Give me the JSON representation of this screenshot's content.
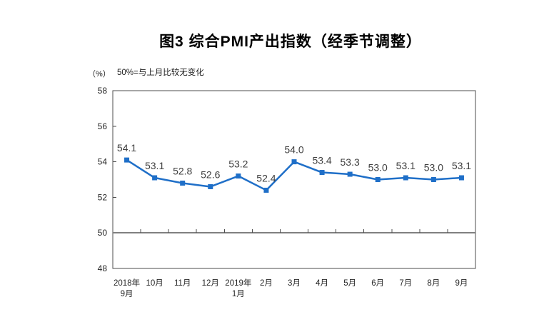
{
  "chart_data": {
    "type": "line",
    "title": "图3 综合PMI产出指数（经季节调整）",
    "unit_label": "（%）",
    "note": "50%=与上月比较无变化",
    "categories": [
      "2018年\n9月",
      "10月",
      "11月",
      "12月",
      "2019年\n1月",
      "2月",
      "3月",
      "4月",
      "5月",
      "6月",
      "7月",
      "8月",
      "9月"
    ],
    "series": [
      {
        "name": "综合PMI产出指数",
        "values": [
          54.1,
          53.1,
          52.8,
          52.6,
          53.2,
          52.4,
          54.0,
          53.4,
          53.3,
          53.0,
          53.1,
          53.0,
          53.1
        ]
      }
    ],
    "ylim": [
      48,
      58
    ],
    "yticks": [
      48,
      50,
      52,
      54,
      56,
      58
    ],
    "reference_line": 50,
    "grid": false,
    "legend": "none",
    "colors": {
      "line": "#1f6fc8",
      "marker": "#1f6fc8",
      "axis": "#4d4d4d",
      "reference_line": "#808080",
      "data_label": "#404040",
      "tick_label": "#262626",
      "background": "#ffffff"
    }
  }
}
